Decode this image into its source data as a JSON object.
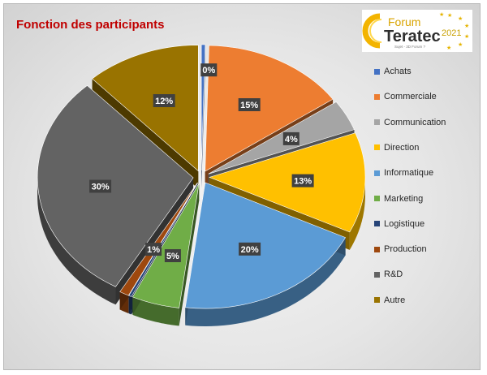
{
  "chart_data": {
    "type": "pie",
    "title": "Fonction des participants",
    "categories": [
      "Achats",
      "Commerciale",
      "Communication",
      "Direction",
      "Informatique",
      "Marketing",
      "Logistique",
      "Production",
      "R&D",
      "Autre"
    ],
    "values": [
      0.4,
      15,
      4,
      13,
      20,
      5,
      0.3,
      1,
      30,
      12
    ],
    "labels": [
      "0%",
      "15%",
      "4%",
      "13%",
      "20%",
      "5%",
      "",
      "1%",
      "30%",
      "12%"
    ],
    "colors": [
      "#4472c4",
      "#ed7d31",
      "#a5a5a5",
      "#ffc000",
      "#5b9bd5",
      "#70ad47",
      "#264478",
      "#9e480e",
      "#636363",
      "#997300"
    ],
    "legend_position": "right",
    "style": "3d-exploded"
  },
  "logo": {
    "word1": "Forum",
    "word2": "Teratec",
    "year": "2021",
    "tagline": "Sujet - 3D Forum ?"
  }
}
